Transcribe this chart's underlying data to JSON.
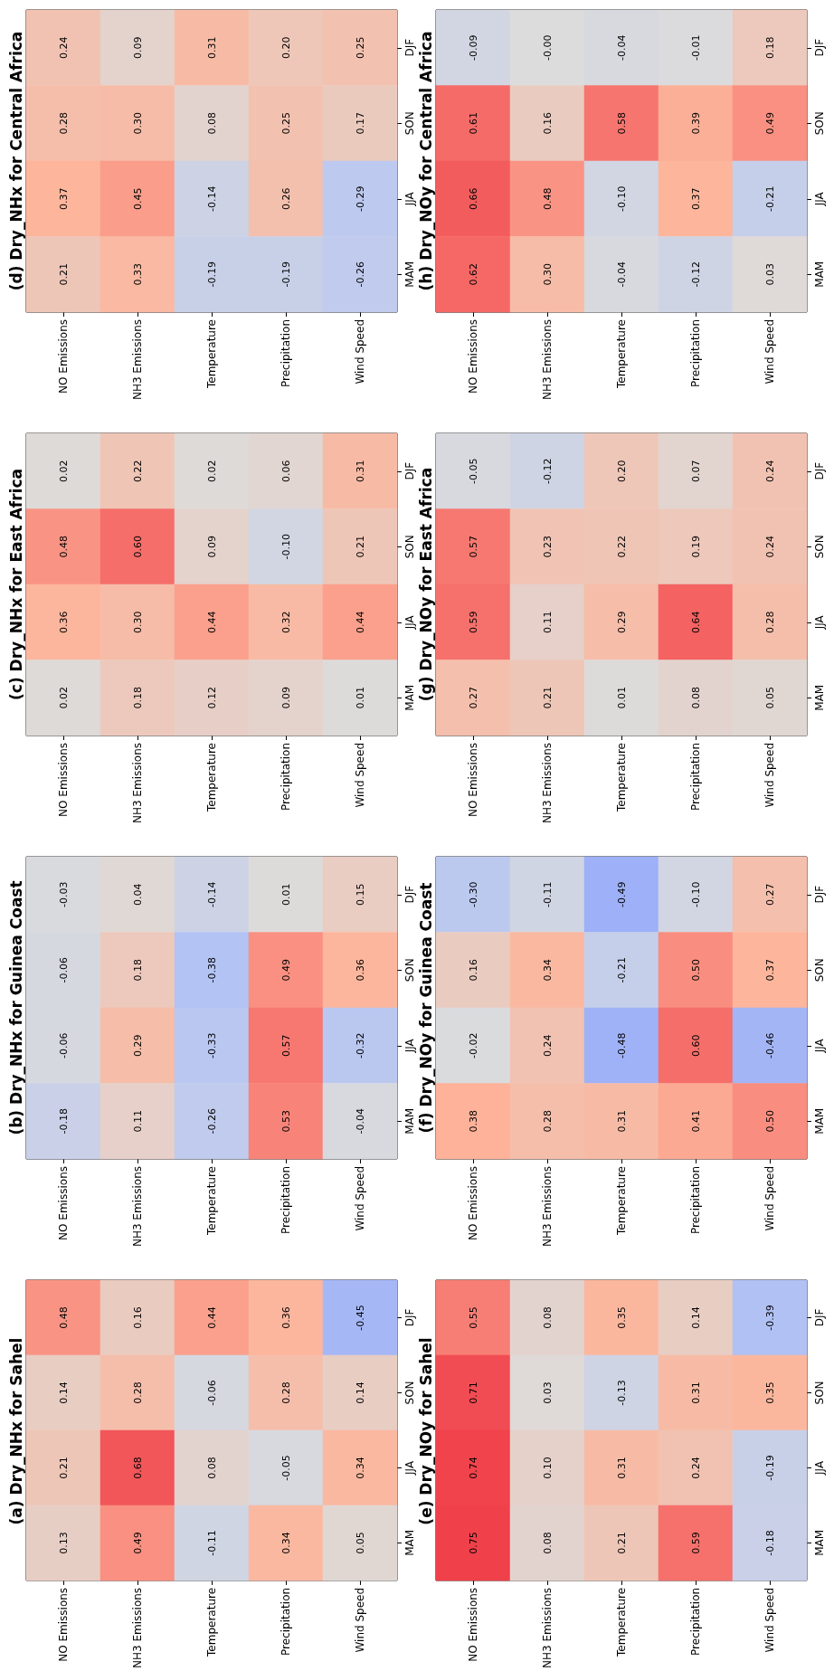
{
  "chart_data": [
    {
      "type": "heatmap",
      "title": "(a) Dry_NHx for Sahel",
      "categories": [
        "NO Emissions",
        "NH3 Emissions",
        "Temperature",
        "Precipitation",
        "Wind Speed"
      ],
      "y_categories": [
        "DJF",
        "SON",
        "JJA",
        "MAM"
      ],
      "data_labels": true,
      "cells": [
        [
          0.48,
          0.16,
          0.44,
          0.36,
          -0.45
        ],
        [
          0.14,
          0.28,
          -0.06,
          0.28,
          0.14
        ],
        [
          0.21,
          0.68,
          0.08,
          -0.05,
          0.34
        ],
        [
          0.13,
          0.49,
          -0.11,
          0.34,
          0.05
        ]
      ]
    },
    {
      "type": "heatmap",
      "title": "(b) Dry_NHx for Guinea Coast",
      "categories": [
        "NO Emissions",
        "NH3 Emissions",
        "Temperature",
        "Precipitation",
        "Wind Speed"
      ],
      "y_categories": [
        "DJF",
        "SON",
        "JJA",
        "MAM"
      ],
      "data_labels": true,
      "cells": [
        [
          -0.03,
          0.04,
          -0.14,
          0.01,
          0.15
        ],
        [
          -0.06,
          0.18,
          -0.38,
          0.49,
          0.36
        ],
        [
          -0.06,
          0.29,
          -0.33,
          0.57,
          -0.32
        ],
        [
          -0.18,
          0.11,
          -0.26,
          0.53,
          -0.04
        ]
      ]
    },
    {
      "type": "heatmap",
      "title": "(c) Dry_NHx for East Africa",
      "categories": [
        "NO Emissions",
        "NH3 Emissions",
        "Temperature",
        "Precipitation",
        "Wind Speed"
      ],
      "y_categories": [
        "DJF",
        "SON",
        "JJA",
        "MAM"
      ],
      "data_labels": true,
      "cells": [
        [
          0.02,
          0.22,
          0.02,
          0.06,
          0.31
        ],
        [
          0.48,
          0.6,
          0.09,
          -0.1,
          0.21
        ],
        [
          0.36,
          0.3,
          0.44,
          0.32,
          0.44
        ],
        [
          0.02,
          0.18,
          0.12,
          0.09,
          0.01
        ]
      ],
      "cell_labels": [
        [
          "0.02",
          "0.22",
          "0.02",
          "0.06",
          "0.31"
        ],
        [
          "0.48",
          "0.60",
          "0.09",
          "-0.10",
          "0.21"
        ],
        [
          "0.36",
          "0.30",
          "0.44",
          "0.32",
          "0.44"
        ],
        [
          "0.02",
          "0.18",
          "0.12",
          "0.09",
          "0.01"
        ]
      ]
    },
    {
      "type": "heatmap",
      "title": "(d) Dry_NHx for Central Africa",
      "categories": [
        "NO Emissions",
        "NH3 Emissions",
        "Temperature",
        "Precipitation",
        "Wind Speed"
      ],
      "y_categories": [
        "DJF",
        "SON",
        "JJA",
        "MAM"
      ],
      "data_labels": true,
      "cells": [
        [
          0.24,
          0.09,
          0.31,
          0.2,
          0.25
        ],
        [
          0.28,
          0.3,
          0.08,
          0.25,
          0.17
        ],
        [
          0.37,
          0.45,
          -0.14,
          0.26,
          -0.29
        ],
        [
          0.21,
          0.33,
          -0.19,
          -0.19,
          -0.26
        ]
      ],
      "cell_labels": [
        [
          "0.24",
          "0.09",
          "0.31",
          "0.20",
          "0.25"
        ],
        [
          "0.28",
          "0.30",
          "0.08",
          "0.25",
          "0.17"
        ],
        [
          "0.37",
          "0.45",
          "-0.14",
          "0.26",
          "-0.29"
        ],
        [
          "0.21",
          "0.33",
          "-0.19",
          "-0.19",
          "-0.26"
        ]
      ]
    },
    {
      "type": "heatmap",
      "title": "(e) Dry_NOy for Sahel",
      "categories": [
        "NO Emissions",
        "NH3 Emissions",
        "Temperature",
        "Precipitation",
        "Wind Speed"
      ],
      "y_categories": [
        "DJF",
        "SON",
        "JJA",
        "MAM"
      ],
      "data_labels": true,
      "cells": [
        [
          0.55,
          0.08,
          0.35,
          0.14,
          -0.39
        ],
        [
          0.71,
          0.03,
          -0.13,
          0.31,
          0.35
        ],
        [
          0.74,
          0.1,
          0.31,
          0.24,
          -0.19
        ],
        [
          0.75,
          0.08,
          0.21,
          0.59,
          -0.18
        ]
      ],
      "cell_labels": [
        [
          "0.55",
          "0.08",
          "0.35",
          "0.14",
          "-0.39"
        ],
        [
          "0.71",
          "0.03",
          "-0.13",
          "0.31",
          "0.35"
        ],
        [
          "0.74",
          "0.10",
          "0.31",
          "0.24",
          "-0.19"
        ],
        [
          "0.75",
          "0.08",
          "0.21",
          "0.59",
          "-0.18"
        ]
      ]
    },
    {
      "type": "heatmap",
      "title": "(f) Dry_NOy for Guinea Coast",
      "categories": [
        "NO Emissions",
        "NH3 Emissions",
        "Temperature",
        "Precipitation",
        "Wind Speed"
      ],
      "y_categories": [
        "DJF",
        "SON",
        "JJA",
        "MAM"
      ],
      "data_labels": true,
      "cells": [
        [
          -0.3,
          -0.11,
          -0.49,
          -0.1,
          0.27
        ],
        [
          0.16,
          0.34,
          -0.21,
          0.5,
          0.37
        ],
        [
          -0.02,
          0.24,
          -0.48,
          0.6,
          -0.46
        ],
        [
          0.38,
          0.28,
          0.31,
          0.41,
          0.5
        ]
      ],
      "cell_labels": [
        [
          "-0.30",
          "-0.11",
          "-0.49",
          "-0.10",
          "0.27"
        ],
        [
          "0.16",
          "0.34",
          "-0.21",
          "0.50",
          "0.37"
        ],
        [
          "-0.02",
          "0.24",
          "-0.48",
          "0.60",
          "-0.46"
        ],
        [
          "0.38",
          "0.28",
          "0.31",
          "0.41",
          "0.50"
        ]
      ]
    },
    {
      "type": "heatmap",
      "title": "(g) Dry_NOy for East Africa",
      "categories": [
        "NO Emissions",
        "NH3 Emissions",
        "Temperature",
        "Precipitation",
        "Wind Speed"
      ],
      "y_categories": [
        "DJF",
        "SON",
        "JJA",
        "MAM"
      ],
      "data_labels": true,
      "cells": [
        [
          -0.05,
          -0.12,
          0.2,
          0.07,
          0.24
        ],
        [
          0.57,
          0.23,
          0.22,
          0.19,
          0.24
        ],
        [
          0.59,
          0.11,
          0.29,
          0.64,
          0.28
        ],
        [
          0.27,
          0.21,
          0.01,
          0.08,
          0.05
        ]
      ],
      "cell_labels": [
        [
          "-0.05",
          "-0.12",
          "0.20",
          "0.07",
          "0.24"
        ],
        [
          "0.57",
          "0.23",
          "0.22",
          "0.19",
          "0.24"
        ],
        [
          "0.59",
          "0.11",
          "0.29",
          "0.64",
          "0.28"
        ],
        [
          "0.27",
          "0.21",
          "0.01",
          "0.08",
          "0.05"
        ]
      ]
    },
    {
      "type": "heatmap",
      "title": "(h) Dry_NOy for Central Africa",
      "categories": [
        "NO Emissions",
        "NH3 Emissions",
        "Temperature",
        "Precipitation",
        "Wind Speed"
      ],
      "y_categories": [
        "DJF",
        "SON",
        "JJA",
        "MAM"
      ],
      "data_labels": true,
      "cells": [
        [
          -0.09,
          0.0,
          -0.04,
          -0.01,
          0.18
        ],
        [
          0.61,
          0.16,
          0.58,
          0.39,
          0.49
        ],
        [
          0.66,
          0.48,
          -0.1,
          0.37,
          -0.21
        ],
        [
          0.62,
          0.3,
          -0.04,
          -0.12,
          0.03
        ]
      ],
      "cell_labels": [
        [
          "-0.09",
          "-0.00",
          "-0.04",
          "-0.01",
          "0.18"
        ],
        [
          "0.61",
          "0.16",
          "0.58",
          "0.39",
          "0.49"
        ],
        [
          "0.66",
          "0.48",
          "-0.10",
          "0.37",
          "-0.21"
        ],
        [
          "0.62",
          "0.30",
          "-0.04",
          "-0.12",
          "0.03"
        ]
      ]
    }
  ]
}
